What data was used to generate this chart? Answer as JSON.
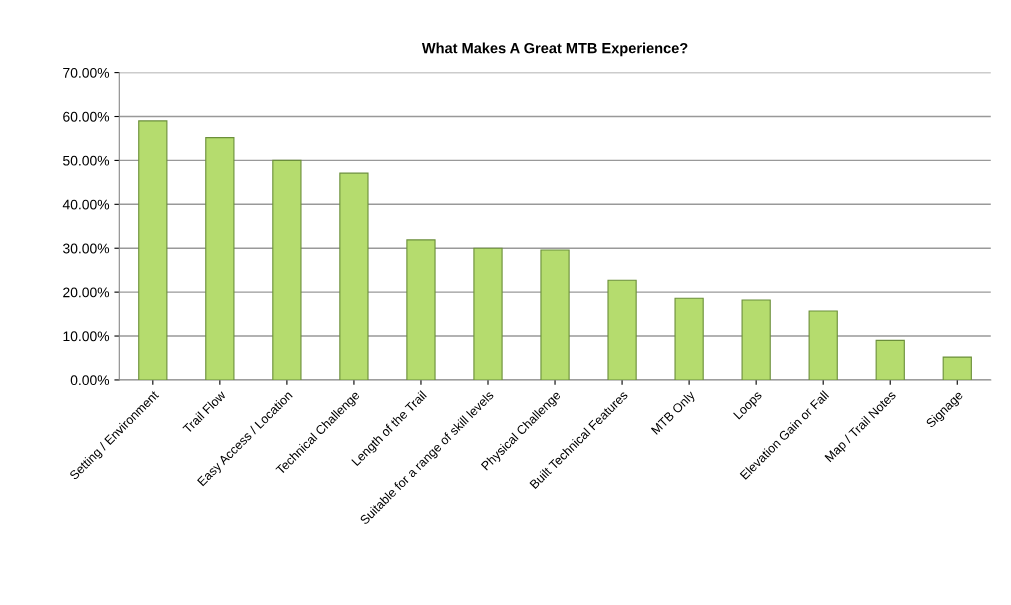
{
  "chart_data": {
    "type": "bar",
    "title": "What Makes A Great MTB Experience?",
    "categories": [
      "Setting / Environment",
      "Trail Flow",
      "Easy Access / Location",
      "Technical Challenge",
      "Length of the Trail",
      "Suitable for a range of skill levels",
      "Physical Challenge",
      "Built Technical Features",
      "MTB Only",
      "Loops",
      "Elevation Gain or Fall",
      "Map / Trail Notes",
      "Signage"
    ],
    "values": [
      59.0,
      55.2,
      50.0,
      47.1,
      31.9,
      30.0,
      29.6,
      22.7,
      18.6,
      18.2,
      15.7,
      9.0,
      5.2
    ],
    "color": "#b5dc6e",
    "ylim": [
      0,
      70
    ],
    "yticks": [
      {
        "value": 0,
        "label": "0.00%"
      },
      {
        "value": 10,
        "label": "10.00%"
      },
      {
        "value": 20,
        "label": "20.00%"
      },
      {
        "value": 30,
        "label": "30.00%"
      },
      {
        "value": 40,
        "label": "40.00%"
      },
      {
        "value": 50,
        "label": "50.00%"
      },
      {
        "value": 60,
        "label": "60.00%"
      },
      {
        "value": 70,
        "label": "70.00%"
      }
    ],
    "grid": "y",
    "legend": false
  }
}
